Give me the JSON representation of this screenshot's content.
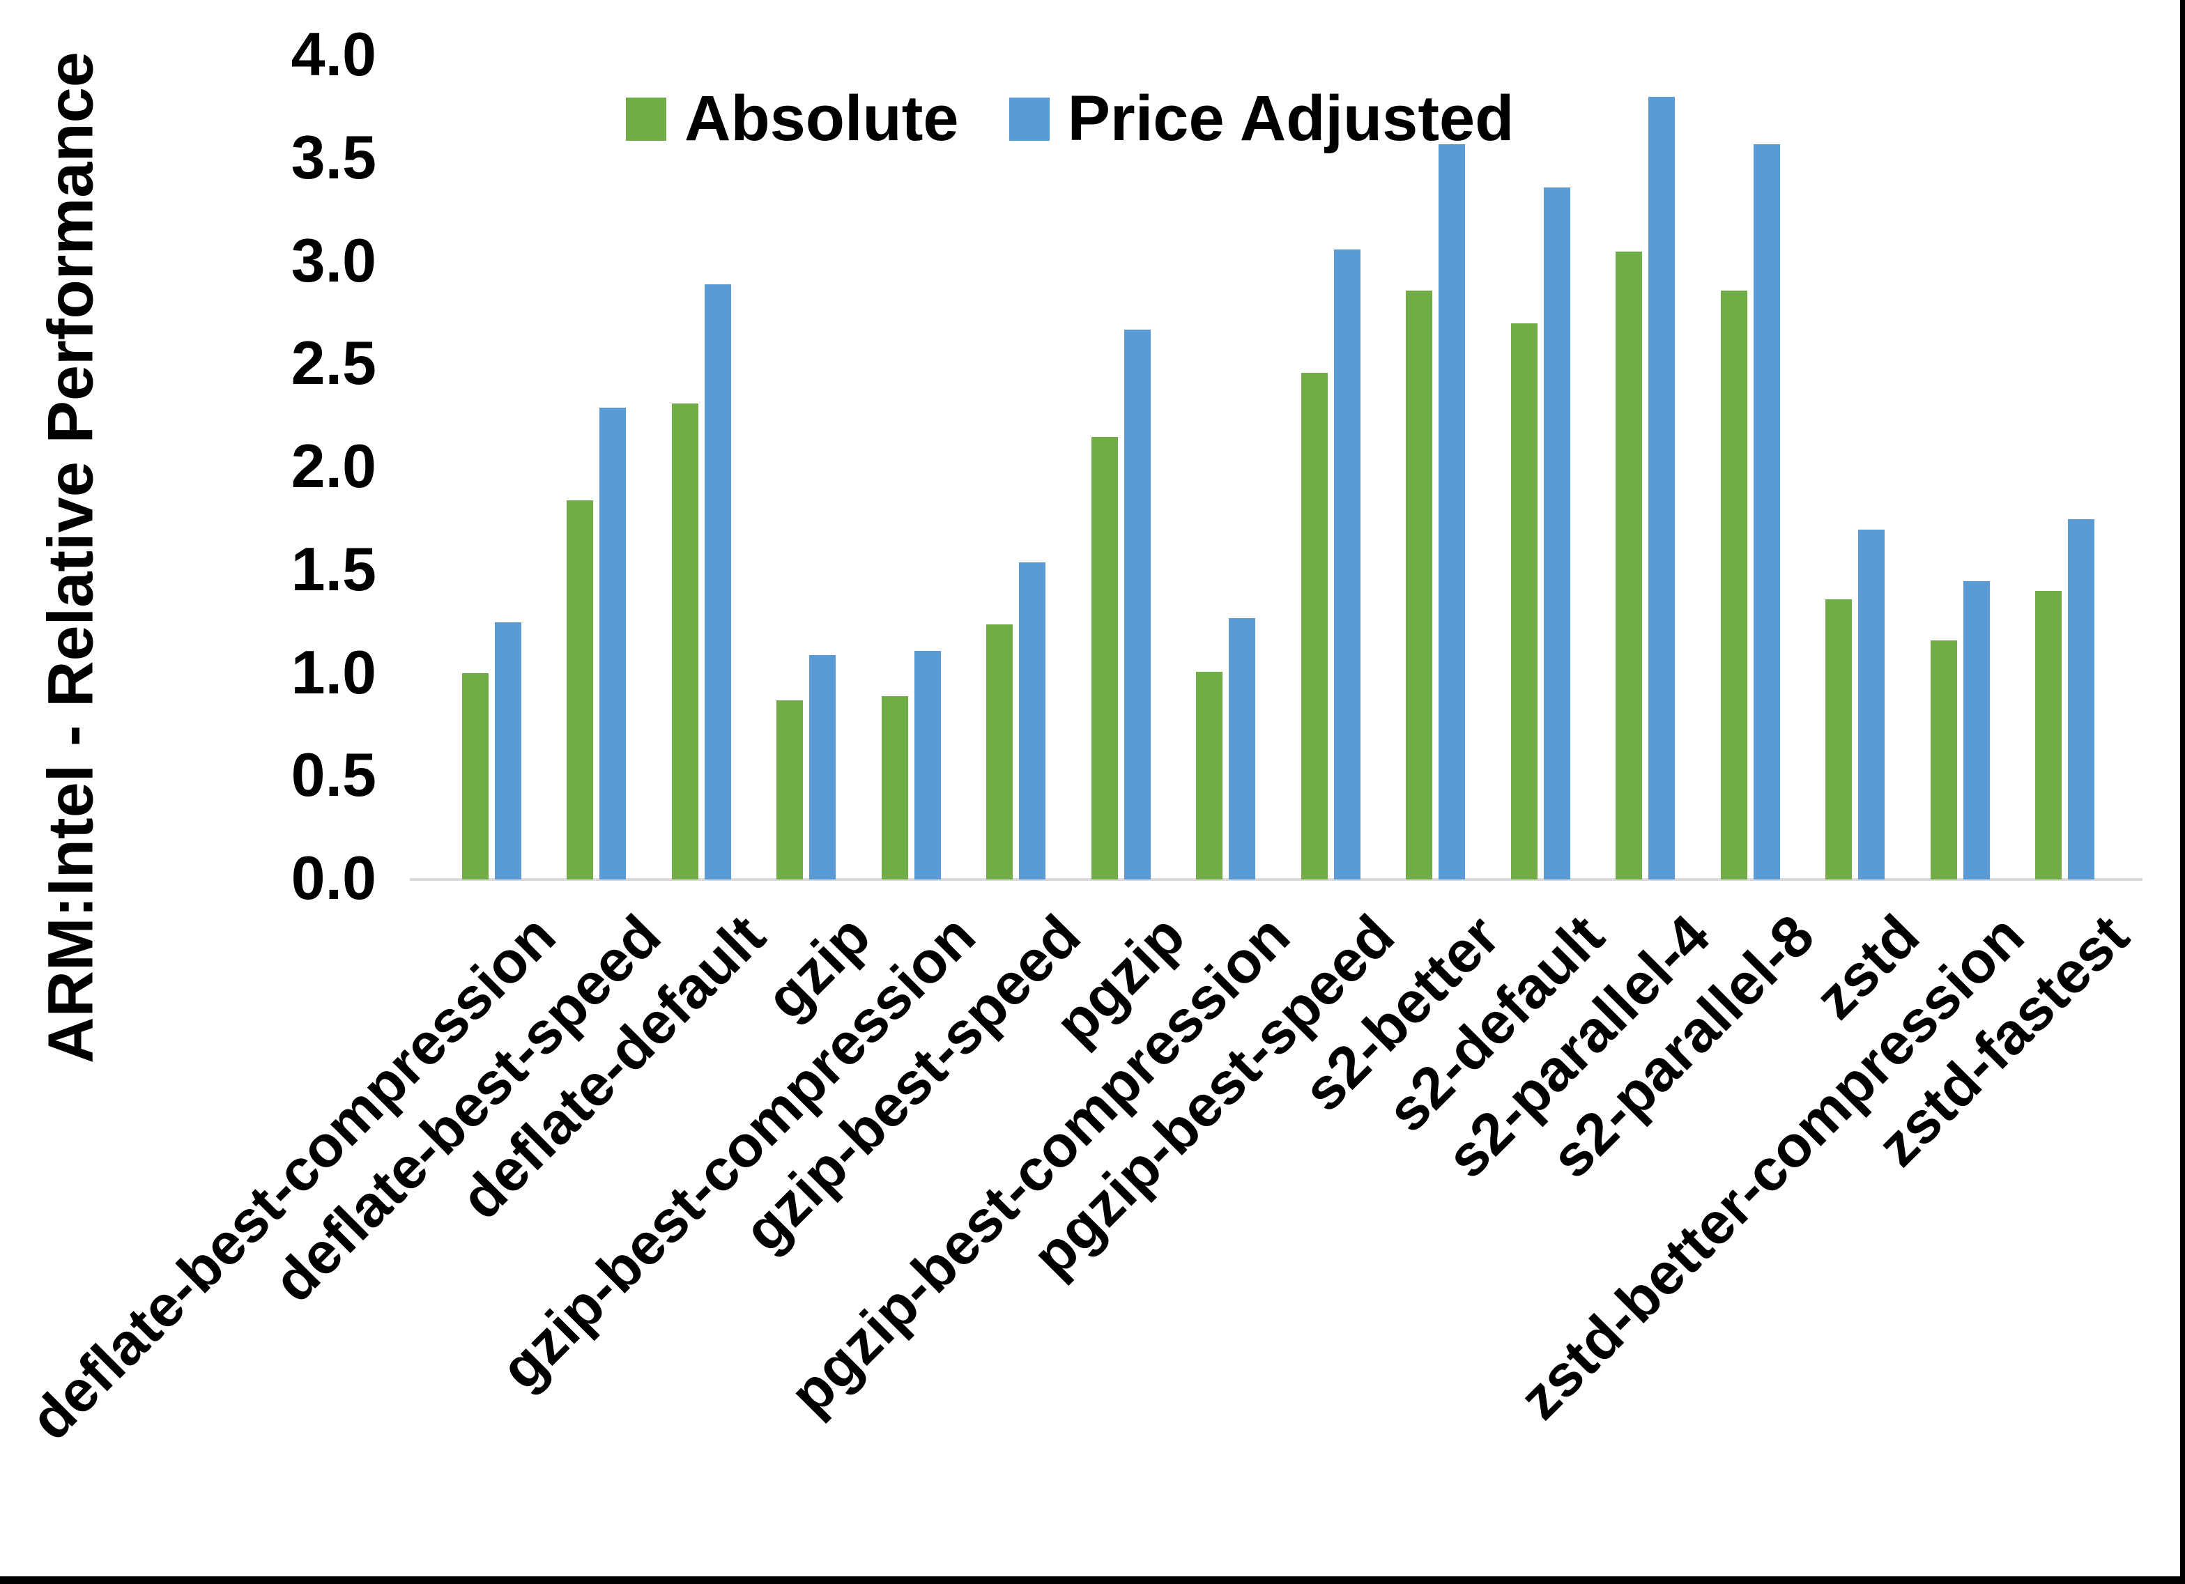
{
  "colors": {
    "background": "#FFFFFF",
    "text": "#000000",
    "axis_line": "#D9D9D9",
    "border": "#000000",
    "series_absolute": "#70AD47",
    "series_price_adjusted": "#5B9BD5"
  },
  "chart_data": {
    "type": "bar",
    "title": "",
    "xlabel": "",
    "ylabel": "ARM:Intel - Relative Performance",
    "ylim": [
      0,
      4.0
    ],
    "ytick_step": 0.5,
    "ytick_labels": [
      "0.0",
      "0.5",
      "1.0",
      "1.5",
      "2.0",
      "2.5",
      "3.0",
      "3.5",
      "4.0"
    ],
    "grid": false,
    "legend_position": "top-center",
    "categories": [
      "deflate-best-compression",
      "deflate-best-speed",
      "deflate-default",
      "gzip",
      "gzip-best-compression",
      "gzip-best-speed",
      "pgzip",
      "pgzip-best-compression",
      "pgzip-best-speed",
      "s2-better",
      "s2-default",
      "s2-parallel-4",
      "s2-parallel-8",
      "zstd",
      "zstd-better-compression",
      "zstd-fastest"
    ],
    "series": [
      {
        "name": "Absolute",
        "color": "#70AD47",
        "values": [
          1.0,
          1.84,
          2.31,
          0.87,
          0.89,
          1.24,
          2.15,
          1.01,
          2.46,
          2.86,
          2.7,
          3.05,
          2.86,
          1.36,
          1.16,
          1.4
        ]
      },
      {
        "name": "Price Adjusted",
        "color": "#5B9BD5",
        "values": [
          1.25,
          2.29,
          2.89,
          1.09,
          1.11,
          1.54,
          2.67,
          1.27,
          3.06,
          3.57,
          3.36,
          3.8,
          3.57,
          1.7,
          1.45,
          1.75
        ]
      }
    ]
  }
}
